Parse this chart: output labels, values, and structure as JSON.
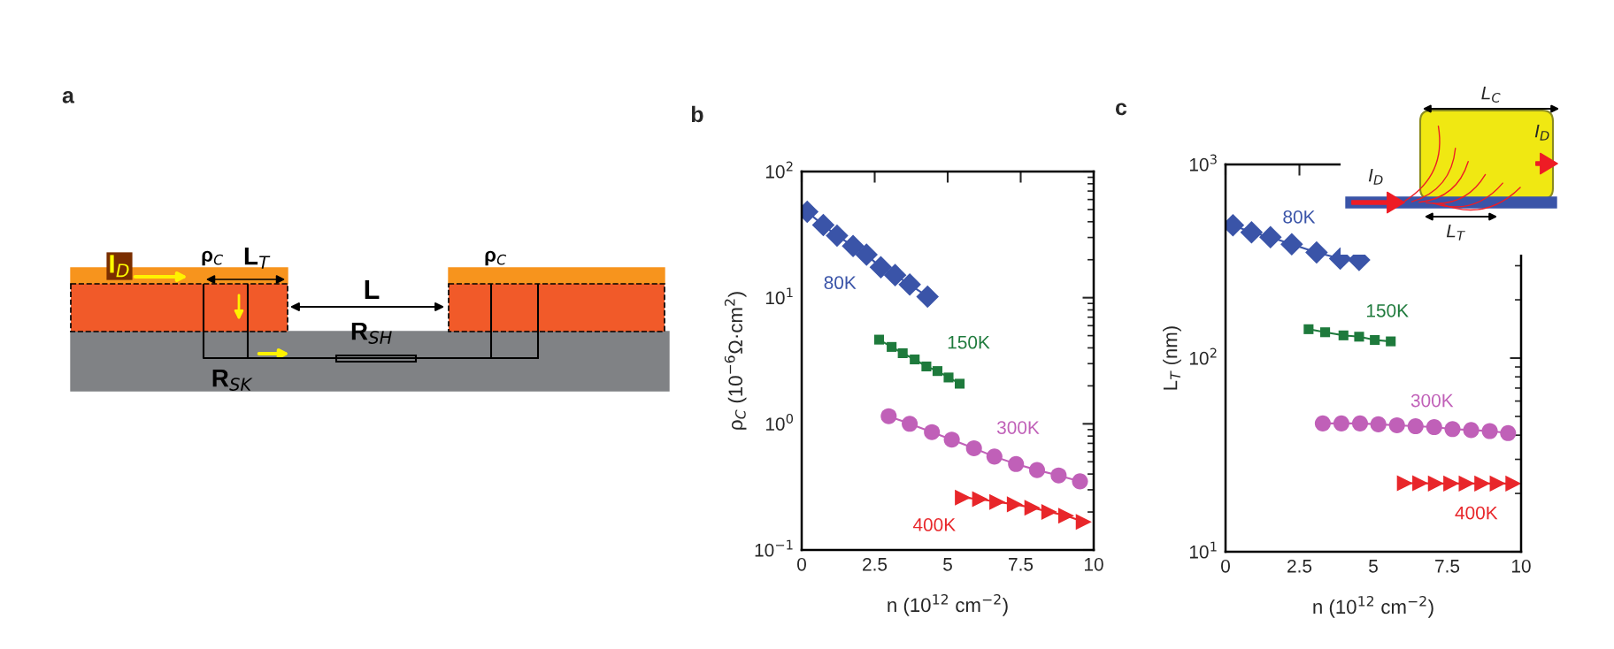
{
  "chart_data": [
    {
      "type": "other",
      "title": "a",
      "annotations": [
        "ρ$_{C}$",
        "L$_{T}$",
        "ρ$_{C}$",
        "I$_{D}$",
        "L",
        "R$_{SH}$",
        "R$_{SK}$"
      ]
    },
    {
      "type": "line",
      "title": "b",
      "xlabel": "n (10$^{12}$ cm$^{−2}$)",
      "ylabel": "ρ$_{C}$ (10$^{−6}$Ω·cm$^{2}$)",
      "log": "y",
      "xlim": [
        0,
        10
      ],
      "xticks": [
        0,
        2.5,
        5,
        7.5,
        10
      ],
      "ylim": [
        0.1,
        100
      ],
      "yticks": [
        {
          "value": 0.1,
          "label": "10$^{−1}$"
        },
        {
          "value": 1,
          "label": "10$^{0}$"
        },
        {
          "value": 10,
          "label": "10$^{1}$"
        },
        {
          "value": 100,
          "label": "10$^{2}$"
        }
      ],
      "grid": false,
      "legend": false,
      "line_style": "solid",
      "series": [
        {
          "name": "80K",
          "color": "#3a54a8",
          "marker": "diamond",
          "x": [
            0.19,
            0.74,
            1.21,
            1.76,
            2.22,
            2.71,
            3.2,
            3.7,
            4.31
          ],
          "values": [
            47.9,
            37.6,
            31,
            25.7,
            21.9,
            17.4,
            15.1,
            12.7,
            10.2
          ]
        },
        {
          "name": "150K",
          "color": "#1e7a3c",
          "marker": "square",
          "x": [
            2.65,
            3.08,
            3.46,
            3.87,
            4.27,
            4.65,
            5.03,
            5.41
          ],
          "values": [
            4.65,
            4.07,
            3.63,
            3.24,
            2.85,
            2.62,
            2.33,
            2.08
          ]
        },
        {
          "name": "300K",
          "color": "#c060b8",
          "marker": "circle",
          "x": [
            2.98,
            3.7,
            4.46,
            5.14,
            5.9,
            6.6,
            7.34,
            8.06,
            8.8,
            9.53
          ],
          "values": [
            1.15,
            1.0,
            0.86,
            0.75,
            0.64,
            0.55,
            0.48,
            0.43,
            0.39,
            0.35
          ]
        },
        {
          "name": "400K",
          "color": "#e8262a",
          "marker": "triangle",
          "x": [
            5.52,
            6.11,
            6.7,
            7.3,
            7.9,
            8.48,
            9.06,
            9.66
          ],
          "values": [
            0.26,
            0.253,
            0.24,
            0.23,
            0.216,
            0.2,
            0.187,
            0.167
          ]
        }
      ]
    },
    {
      "type": "line",
      "title": "c",
      "xlabel": "n (10$^{12}$ cm$^{−2}$)",
      "ylabel": "L$_{T}$ (nm)",
      "log": "y",
      "xlim": [
        0,
        10
      ],
      "xticks": [
        0,
        2.5,
        5,
        7.5,
        10
      ],
      "ylim": [
        10,
        1000
      ],
      "yticks": [
        {
          "value": 10,
          "label": "10$^{1}$"
        },
        {
          "value": 100,
          "label": "10$^{2}$"
        },
        {
          "value": 1000,
          "label": "10$^{3}$"
        }
      ],
      "grid": false,
      "legend": false,
      "line_style": "solid",
      "annotations": [
        "L$_{C}$",
        "I$_{D}$",
        "I$_{D}$",
        "L$_{T}$"
      ],
      "series": [
        {
          "name": "80K",
          "color": "#3a54a8",
          "marker": "diamond",
          "x": [
            0.25,
            0.88,
            1.52,
            2.24,
            3.08,
            3.88,
            4.52
          ],
          "values": [
            485,
            446,
            421,
            387,
            351,
            326,
            321
          ]
        },
        {
          "name": "150K",
          "color": "#1e7a3c",
          "marker": "square",
          "x": [
            2.81,
            3.37,
            3.99,
            4.52,
            5.05,
            5.59
          ],
          "values": [
            141,
            136,
            131,
            129,
            124,
            122
          ]
        },
        {
          "name": "300K",
          "color": "#c060b8",
          "marker": "circle",
          "x": [
            3.29,
            3.92,
            4.55,
            5.17,
            5.8,
            6.43,
            7.06,
            7.68,
            8.31,
            8.94,
            9.56
          ],
          "values": [
            46,
            46,
            46,
            45.5,
            45,
            44.5,
            44,
            43,
            42.5,
            42,
            41
          ]
        },
        {
          "name": "400K",
          "color": "#e8262a",
          "marker": "triangle",
          "x": [
            6.07,
            6.59,
            7.12,
            7.64,
            8.16,
            8.69,
            9.21,
            9.74
          ],
          "values": [
            22.6,
            22.6,
            22.5,
            22.5,
            22.5,
            22.5,
            22.5,
            22.5
          ]
        }
      ]
    }
  ]
}
